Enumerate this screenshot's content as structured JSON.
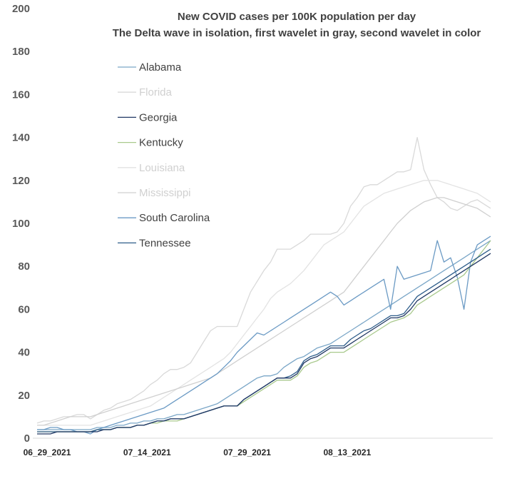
{
  "chart_data": {
    "type": "line",
    "title": "New COVID cases per 100K population per day",
    "subtitle": "The Delta wave in isolation, first wavelet in gray, second wavelet in color",
    "xlabel": "",
    "ylabel": "",
    "ylim": [
      0,
      200
    ],
    "yticks": [
      "0",
      "20",
      "40",
      "60",
      "80",
      "100",
      "120",
      "140",
      "160",
      "180",
      "200"
    ],
    "x_tick_labels": [
      "06_29_2021",
      "07_14_2021",
      "07_29_2021",
      "08_13_2021"
    ],
    "grid": false,
    "legend_position": "upper-left",
    "x": [
      "06_29",
      "06_30",
      "07_01",
      "07_02",
      "07_03",
      "07_04",
      "07_05",
      "07_06",
      "07_07",
      "07_08",
      "07_09",
      "07_10",
      "07_11",
      "07_12",
      "07_13",
      "07_14",
      "07_15",
      "07_16",
      "07_17",
      "07_18",
      "07_19",
      "07_20",
      "07_21",
      "07_22",
      "07_23",
      "07_24",
      "07_25",
      "07_26",
      "07_27",
      "07_28",
      "07_29",
      "07_30",
      "07_31",
      "08_01",
      "08_02",
      "08_03",
      "08_04",
      "08_05",
      "08_06",
      "08_07",
      "08_08",
      "08_09",
      "08_10",
      "08_11",
      "08_12",
      "08_13",
      "08_14",
      "08_15",
      "08_16",
      "08_17",
      "08_18",
      "08_19",
      "08_20",
      "08_21",
      "08_22",
      "08_23",
      "08_24",
      "08_25",
      "08_26",
      "08_27",
      "08_28",
      "08_29",
      "08_30",
      "08_31",
      "09_01",
      "09_02",
      "09_03",
      "09_04",
      "09_05"
    ],
    "series": [
      {
        "name": "Alabama",
        "color": "#7aa6c7",
        "values": [
          4,
          4,
          4,
          4,
          4,
          4,
          4,
          4,
          4,
          5,
          5,
          5,
          6,
          6,
          7,
          7,
          8,
          8,
          9,
          9,
          10,
          11,
          11,
          12,
          13,
          14,
          15,
          16,
          18,
          20,
          22,
          24,
          26,
          28,
          29,
          29,
          30,
          33,
          35,
          37,
          38,
          40,
          42,
          43,
          44,
          46,
          48,
          50,
          52,
          54,
          56,
          58,
          60,
          62,
          64,
          66,
          68,
          70,
          72,
          74,
          76,
          78,
          80,
          82,
          84,
          86,
          88,
          90,
          92
        ],
        "dash": "solid"
      },
      {
        "name": "Florida",
        "color": "#d9d9d9",
        "values": [
          7,
          8,
          8,
          9,
          10,
          10,
          11,
          11,
          9,
          11,
          13,
          14,
          16,
          17,
          18,
          20,
          22,
          25,
          27,
          30,
          32,
          32,
          33,
          35,
          40,
          45,
          50,
          52,
          52,
          52,
          52,
          60,
          68,
          73,
          78,
          82,
          88,
          88,
          88,
          90,
          92,
          95,
          95,
          95,
          95,
          96,
          100,
          108,
          112,
          117,
          118,
          118,
          120,
          122,
          124,
          124,
          125,
          140,
          125,
          118,
          112,
          110,
          107,
          106,
          108,
          110,
          111,
          109,
          107
        ],
        "dash": "solid"
      },
      {
        "name": "Georgia",
        "color": "#203864",
        "values": [
          2,
          2,
          2,
          3,
          3,
          3,
          3,
          3,
          3,
          3,
          4,
          4,
          5,
          5,
          5,
          6,
          6,
          7,
          8,
          8,
          9,
          9,
          9,
          10,
          11,
          12,
          13,
          14,
          15,
          15,
          15,
          18,
          20,
          22,
          24,
          26,
          28,
          28,
          28,
          30,
          35,
          37,
          38,
          40,
          42,
          42,
          42,
          44,
          46,
          48,
          50,
          52,
          54,
          56,
          56,
          57,
          60,
          64,
          66,
          68,
          70,
          72,
          74,
          76,
          78,
          80,
          82,
          84,
          86
        ],
        "dash": "solid"
      },
      {
        "name": "Kentucky",
        "color": "#a9c98d",
        "values": [
          3,
          3,
          3,
          3,
          3,
          3,
          3,
          3,
          3,
          4,
          4,
          4,
          5,
          5,
          5,
          6,
          6,
          7,
          7,
          8,
          8,
          8,
          9,
          10,
          11,
          12,
          13,
          14,
          15,
          15,
          15,
          17,
          19,
          21,
          23,
          25,
          27,
          27,
          27,
          29,
          33,
          35,
          36,
          38,
          40,
          40,
          40,
          42,
          44,
          46,
          48,
          50,
          52,
          54,
          55,
          56,
          58,
          62,
          64,
          66,
          68,
          70,
          72,
          74,
          76,
          80,
          84,
          88,
          92
        ],
        "dash": "solid"
      },
      {
        "name": "Louisiana",
        "color": "#e3e3e3",
        "values": [
          6,
          6,
          6,
          6,
          6,
          6,
          6,
          6,
          6,
          7,
          8,
          9,
          10,
          11,
          12,
          13,
          14,
          15,
          17,
          19,
          21,
          23,
          25,
          27,
          29,
          31,
          33,
          35,
          37,
          40,
          44,
          48,
          52,
          56,
          60,
          65,
          68,
          70,
          72,
          75,
          78,
          82,
          86,
          90,
          92,
          94,
          96,
          100,
          104,
          108,
          110,
          112,
          114,
          115,
          116,
          117,
          118,
          119,
          120,
          120,
          120,
          119,
          118,
          117,
          116,
          115,
          114,
          112,
          110
        ],
        "dash": "solid"
      },
      {
        "name": "Mississippi",
        "color": "#d0d0d0",
        "values": [
          6,
          6,
          7,
          8,
          9,
          10,
          10,
          10,
          10,
          11,
          12,
          13,
          14,
          15,
          16,
          17,
          18,
          19,
          20,
          21,
          22,
          23,
          24,
          25,
          26,
          27,
          28,
          30,
          32,
          34,
          36,
          38,
          40,
          42,
          44,
          46,
          48,
          50,
          52,
          54,
          56,
          58,
          60,
          62,
          64,
          66,
          68,
          72,
          76,
          80,
          84,
          88,
          92,
          96,
          100,
          103,
          106,
          108,
          110,
          111,
          112,
          112,
          111,
          110,
          109,
          108,
          107,
          105,
          103
        ],
        "dash": "solid"
      },
      {
        "name": "South Carolina",
        "color": "#6b9ac4",
        "values": [
          4,
          4,
          5,
          5,
          4,
          4,
          3,
          3,
          2,
          4,
          5,
          6,
          7,
          8,
          9,
          10,
          11,
          12,
          13,
          14,
          16,
          18,
          20,
          22,
          24,
          26,
          28,
          30,
          33,
          36,
          40,
          43,
          46,
          49,
          48,
          50,
          52,
          54,
          56,
          58,
          60,
          62,
          64,
          66,
          68,
          66,
          62,
          64,
          66,
          68,
          70,
          72,
          74,
          60,
          80,
          74,
          75,
          76,
          77,
          78,
          92,
          82,
          84,
          75,
          60,
          82,
          90,
          92,
          94
        ],
        "dash": "solid"
      },
      {
        "name": "Tennessee",
        "color": "#2e5d8a",
        "values": [
          3,
          3,
          3,
          3,
          3,
          3,
          3,
          3,
          3,
          4,
          4,
          4,
          5,
          5,
          5,
          6,
          6,
          7,
          8,
          8,
          9,
          9,
          9,
          10,
          11,
          12,
          13,
          14,
          15,
          15,
          15,
          18,
          20,
          22,
          24,
          26,
          28,
          28,
          29,
          31,
          36,
          38,
          39,
          41,
          43,
          43,
          43,
          46,
          48,
          50,
          51,
          53,
          55,
          57,
          57,
          58,
          62,
          66,
          68,
          70,
          72,
          74,
          76,
          78,
          80,
          82,
          84,
          86,
          88
        ],
        "dash": "solid"
      }
    ]
  }
}
